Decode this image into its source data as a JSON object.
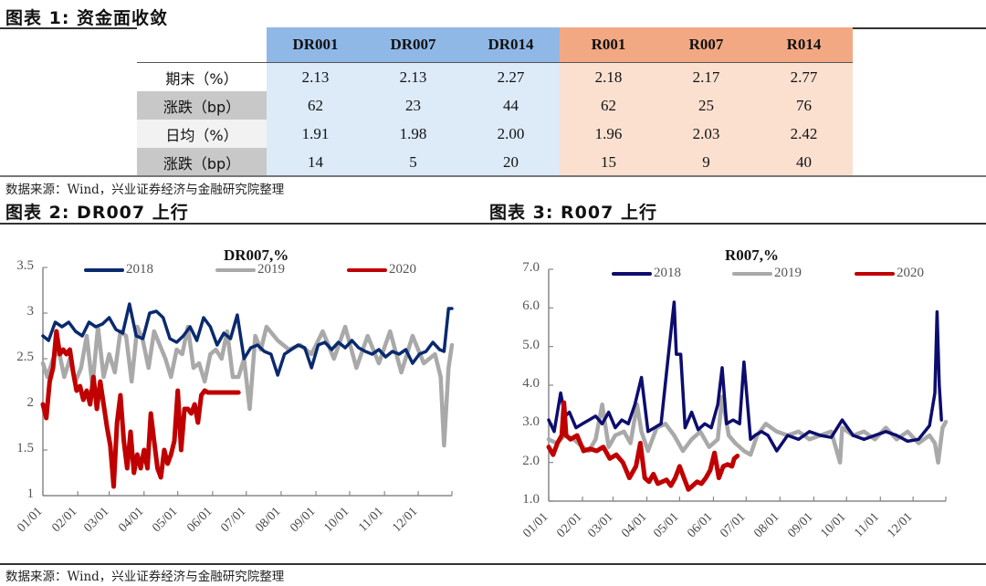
{
  "figure1": {
    "title": "图表 1:  资金面收敛",
    "columns": [
      "DR001",
      "DR007",
      "DR014",
      "R001",
      "R007",
      "R014"
    ],
    "rows": [
      {
        "label": "期末（%）",
        "values": [
          "2.13",
          "2.13",
          "2.27",
          "2.18",
          "2.17",
          "2.77"
        ]
      },
      {
        "label": "涨跌（bp）",
        "values": [
          "62",
          "23",
          "44",
          "62",
          "25",
          "76"
        ]
      },
      {
        "label": "日均（%）",
        "values": [
          "1.91",
          "1.98",
          "2.00",
          "1.96",
          "2.03",
          "2.42"
        ]
      },
      {
        "label": "涨跌（bp）",
        "values": [
          "14",
          "5",
          "20",
          "15",
          "9",
          "40"
        ]
      }
    ],
    "source": "数据来源：Wind，兴业证券经济与金融研究院整理"
  },
  "figure2": {
    "title": "图表 2:  DR007 上行"
  },
  "figure3": {
    "title": "图表 3:  R007 上行"
  },
  "footer": {
    "source": "数据来源：Wind，兴业证券经济与金融研究院整理"
  },
  "colors": {
    "y2018": "#0a2a6e",
    "y2019": "#a9a9a9",
    "y2020": "#c00000",
    "dr_header": "#8fb8e6",
    "r_header": "#f2a882"
  },
  "chart_data": [
    {
      "type": "line",
      "title": "DR007,%",
      "xlabel": "",
      "ylabel": "",
      "x_ticks": [
        "01/01",
        "02/01",
        "03/01",
        "04/01",
        "05/01",
        "06/01",
        "07/01",
        "08/01",
        "09/01",
        "10/01",
        "11/01",
        "12/01"
      ],
      "y_ticks": [
        "1",
        "1.5",
        "2",
        "2.5",
        "3",
        "3.5"
      ],
      "ylim": [
        1,
        3.5
      ],
      "legend": [
        "2018",
        "2019",
        "2020"
      ],
      "legend_position": "top",
      "grid": false,
      "series": [
        {
          "name": "2018",
          "color": "#0a2a6e",
          "x_day": [
            1,
            6,
            12,
            18,
            24,
            30,
            36,
            42,
            48,
            54,
            60,
            66,
            72,
            78,
            84,
            90,
            96,
            102,
            108,
            114,
            120,
            126,
            132,
            138,
            144,
            150,
            156,
            162,
            168,
            174,
            180,
            186,
            192,
            198,
            204,
            210,
            216,
            222,
            228,
            234,
            240,
            246,
            252,
            258,
            264,
            270,
            276,
            282,
            288,
            294,
            300,
            306,
            312,
            318,
            324,
            330,
            336,
            342,
            348,
            354,
            358,
            362,
            365
          ],
          "values": [
            2.75,
            2.7,
            2.9,
            2.85,
            2.9,
            2.8,
            2.75,
            2.9,
            2.85,
            2.88,
            2.95,
            2.82,
            2.78,
            3.1,
            2.75,
            2.72,
            3.0,
            3.02,
            2.95,
            2.72,
            2.68,
            2.75,
            2.85,
            2.7,
            2.95,
            2.85,
            2.65,
            2.78,
            2.72,
            2.98,
            2.5,
            2.62,
            2.65,
            2.58,
            2.55,
            2.32,
            2.55,
            2.6,
            2.65,
            2.62,
            2.4,
            2.65,
            2.68,
            2.6,
            2.68,
            2.62,
            2.7,
            2.62,
            2.58,
            2.55,
            2.6,
            2.52,
            2.58,
            2.55,
            2.6,
            2.45,
            2.55,
            2.58,
            2.68,
            2.6,
            2.58,
            3.05,
            3.05
          ]
        },
        {
          "name": "2019",
          "color": "#a9a9a9",
          "x_day": [
            1,
            5,
            10,
            15,
            20,
            25,
            30,
            35,
            40,
            45,
            50,
            55,
            60,
            65,
            70,
            75,
            80,
            85,
            90,
            95,
            100,
            105,
            110,
            115,
            120,
            125,
            130,
            135,
            140,
            145,
            150,
            155,
            160,
            165,
            170,
            175,
            180,
            185,
            190,
            195,
            200,
            210,
            220,
            230,
            240,
            250,
            260,
            270,
            280,
            290,
            300,
            310,
            320,
            330,
            340,
            350,
            355,
            358,
            362,
            365
          ],
          "values": [
            2.45,
            2.3,
            2.5,
            2.6,
            2.3,
            2.5,
            2.25,
            2.4,
            2.75,
            2.2,
            2.85,
            2.3,
            2.55,
            2.35,
            2.8,
            2.75,
            2.25,
            2.85,
            2.7,
            2.4,
            2.8,
            2.65,
            2.5,
            2.3,
            2.6,
            2.55,
            2.85,
            2.4,
            2.45,
            2.25,
            2.55,
            2.6,
            2.5,
            2.8,
            2.3,
            2.3,
            2.5,
            1.95,
            2.75,
            2.6,
            2.85,
            2.7,
            2.6,
            2.65,
            2.55,
            2.8,
            2.5,
            2.85,
            2.4,
            2.75,
            2.45,
            2.8,
            2.35,
            2.75,
            2.45,
            2.55,
            2.3,
            1.55,
            2.4,
            2.65
          ]
        },
        {
          "name": "2020",
          "color": "#c00000",
          "x_day": [
            1,
            4,
            7,
            10,
            13,
            16,
            19,
            22,
            25,
            28,
            31,
            34,
            37,
            40,
            43,
            46,
            49,
            52,
            55,
            58,
            61,
            64,
            67,
            70,
            73,
            76,
            79,
            82,
            85,
            88,
            91,
            94,
            97,
            100,
            103,
            106,
            109,
            112,
            115,
            118,
            121,
            124,
            127,
            130,
            133,
            136,
            139,
            142,
            145,
            148,
            151,
            154,
            157,
            160,
            163,
            166,
            169,
            172,
            175
          ],
          "values": [
            2.0,
            1.85,
            2.25,
            2.4,
            2.8,
            2.55,
            2.6,
            2.55,
            2.6,
            2.35,
            2.15,
            2.2,
            2.05,
            2.15,
            2.0,
            2.3,
            1.95,
            2.25,
            2.0,
            1.75,
            1.55,
            1.1,
            1.8,
            2.1,
            1.6,
            1.3,
            1.7,
            1.25,
            1.45,
            1.3,
            1.5,
            1.3,
            1.9,
            1.6,
            1.3,
            1.2,
            1.5,
            1.35,
            1.45,
            1.6,
            2.15,
            1.5,
            1.95,
            1.95,
            1.9,
            2.0,
            1.8,
            2.1,
            2.15,
            2.13,
            2.13,
            2.13,
            2.13,
            2.13,
            2.13,
            2.13,
            2.13,
            2.13,
            2.13
          ]
        }
      ]
    },
    {
      "type": "line",
      "title": "R007,%",
      "xlabel": "",
      "ylabel": "",
      "x_ticks": [
        "01/01",
        "02/01",
        "03/01",
        "04/01",
        "05/01",
        "06/01",
        "07/01",
        "08/01",
        "09/01",
        "10/01",
        "11/01",
        "12/01"
      ],
      "y_ticks": [
        "1.0",
        "2.0",
        "3.0",
        "4.0",
        "5.0",
        "6.0",
        "7.0"
      ],
      "ylim": [
        1,
        7
      ],
      "legend": [
        "2018",
        "2019",
        "2020"
      ],
      "legend_position": "top",
      "grid": false,
      "series": [
        {
          "name": "2018",
          "color": "#0d0d6e",
          "x_day": [
            1,
            6,
            12,
            16,
            20,
            26,
            32,
            38,
            44,
            50,
            56,
            62,
            68,
            74,
            80,
            86,
            92,
            98,
            104,
            110,
            116,
            118,
            122,
            126,
            132,
            138,
            144,
            150,
            156,
            160,
            164,
            170,
            176,
            180,
            186,
            190,
            196,
            202,
            210,
            220,
            230,
            240,
            250,
            260,
            270,
            280,
            290,
            300,
            310,
            320,
            330,
            340,
            350,
            355,
            357,
            359,
            361,
            365
          ],
          "values": [
            3.1,
            2.8,
            3.8,
            3.2,
            3.3,
            2.9,
            3.0,
            3.1,
            3.2,
            3.0,
            3.3,
            2.9,
            3.1,
            3.0,
            3.5,
            4.2,
            2.8,
            2.9,
            3.0,
            4.6,
            6.15,
            4.8,
            4.8,
            2.9,
            3.3,
            2.85,
            3.0,
            2.9,
            3.5,
            4.45,
            3.0,
            3.1,
            3.0,
            4.6,
            2.6,
            2.7,
            2.8,
            2.7,
            2.3,
            2.7,
            2.6,
            2.8,
            2.7,
            2.65,
            3.1,
            2.7,
            2.6,
            2.7,
            2.8,
            2.7,
            2.55,
            2.6,
            2.95,
            3.8,
            5.9,
            4.0,
            3.1
          ]
        },
        {
          "name": "2019",
          "color": "#a9a9a9",
          "x_day": [
            1,
            8,
            16,
            24,
            32,
            38,
            44,
            50,
            56,
            62,
            70,
            76,
            82,
            86,
            92,
            100,
            108,
            116,
            124,
            132,
            140,
            148,
            156,
            160,
            166,
            172,
            180,
            186,
            192,
            200,
            210,
            220,
            230,
            240,
            250,
            260,
            268,
            270,
            280,
            290,
            300,
            310,
            320,
            330,
            340,
            350,
            355,
            358,
            362,
            365
          ],
          "values": [
            2.6,
            2.5,
            2.7,
            2.6,
            2.4,
            2.3,
            2.6,
            3.5,
            2.4,
            2.7,
            2.8,
            2.5,
            3.5,
            2.8,
            2.3,
            2.9,
            3.0,
            2.7,
            2.3,
            2.6,
            2.8,
            2.4,
            2.6,
            3.7,
            2.7,
            2.5,
            2.3,
            2.2,
            2.7,
            3.0,
            2.8,
            2.7,
            2.8,
            2.6,
            2.7,
            2.8,
            2.0,
            2.9,
            2.7,
            2.8,
            2.6,
            2.9,
            2.6,
            2.8,
            2.5,
            2.7,
            2.5,
            2.0,
            2.9,
            3.05
          ]
        },
        {
          "name": "2020",
          "color": "#c00000",
          "x_day": [
            1,
            5,
            9,
            13,
            15,
            17,
            21,
            27,
            33,
            39,
            45,
            51,
            57,
            63,
            69,
            75,
            81,
            85,
            89,
            93,
            97,
            101,
            105,
            109,
            113,
            117,
            121,
            125,
            129,
            133,
            137,
            141,
            145,
            149,
            153,
            157,
            161,
            165,
            169,
            171,
            174
          ],
          "values": [
            2.4,
            2.2,
            2.5,
            2.7,
            3.55,
            2.7,
            2.6,
            2.7,
            2.3,
            2.35,
            2.3,
            2.4,
            2.1,
            2.2,
            2.0,
            1.6,
            1.9,
            2.5,
            1.6,
            1.5,
            1.7,
            1.45,
            1.5,
            1.55,
            1.4,
            1.6,
            1.9,
            1.6,
            1.3,
            1.4,
            1.5,
            1.45,
            1.6,
            1.8,
            2.25,
            1.6,
            1.9,
            1.95,
            1.9,
            2.1,
            2.17
          ]
        }
      ]
    }
  ]
}
